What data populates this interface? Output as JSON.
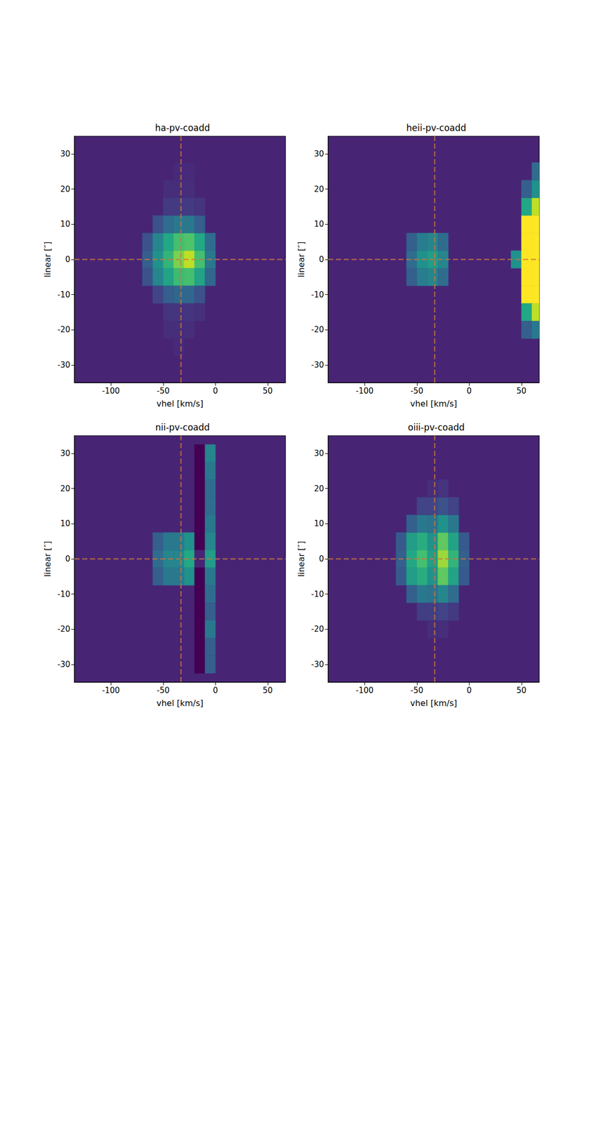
{
  "chart_data": [
    {
      "type": "heatmap",
      "title": "ha-pv-coadd",
      "x_label": "vhel [km/s]",
      "y_label": "linear [″]",
      "xlim": [
        -135,
        67
      ],
      "ylim": [
        -35,
        35
      ],
      "xticks": [
        -100,
        -50,
        0,
        50
      ],
      "yticks": [
        -30,
        -20,
        -10,
        0,
        10,
        20,
        30
      ],
      "cell_size": [
        10,
        5
      ],
      "value_range": [
        0,
        1
      ],
      "background_value": 0.1,
      "reference_lines": {
        "x": -33,
        "y": 0
      },
      "cells": [
        [
          -65,
          0,
          0.3
        ],
        [
          -55,
          0,
          0.5
        ],
        [
          -45,
          0,
          0.65
        ],
        [
          -35,
          0,
          0.8
        ],
        [
          -25,
          0,
          0.9
        ],
        [
          -15,
          0,
          0.7
        ],
        [
          -5,
          0,
          0.4
        ],
        [
          -65,
          5,
          0.25
        ],
        [
          -55,
          5,
          0.45
        ],
        [
          -45,
          5,
          0.6
        ],
        [
          -35,
          5,
          0.7
        ],
        [
          -25,
          5,
          0.72
        ],
        [
          -15,
          5,
          0.6
        ],
        [
          -5,
          5,
          0.35
        ],
        [
          -65,
          -5,
          0.25
        ],
        [
          -55,
          -5,
          0.45
        ],
        [
          -45,
          -5,
          0.58
        ],
        [
          -35,
          -5,
          0.68
        ],
        [
          -25,
          -5,
          0.7
        ],
        [
          -15,
          -5,
          0.58
        ],
        [
          -5,
          -5,
          0.33
        ],
        [
          -55,
          10,
          0.25
        ],
        [
          -45,
          10,
          0.35
        ],
        [
          -35,
          10,
          0.4
        ],
        [
          -25,
          10,
          0.4
        ],
        [
          -15,
          10,
          0.3
        ],
        [
          -55,
          -10,
          0.2
        ],
        [
          -45,
          -10,
          0.3
        ],
        [
          -35,
          -10,
          0.33
        ],
        [
          -25,
          -10,
          0.33
        ],
        [
          -15,
          -10,
          0.25
        ],
        [
          -45,
          15,
          0.17
        ],
        [
          -35,
          15,
          0.17
        ],
        [
          -25,
          15,
          0.17
        ],
        [
          -15,
          15,
          0.15
        ],
        [
          -45,
          -15,
          0.15
        ],
        [
          -35,
          -15,
          0.15
        ],
        [
          -25,
          -15,
          0.15
        ],
        [
          -15,
          -15,
          0.14
        ],
        [
          -45,
          20,
          0.13
        ],
        [
          -35,
          20,
          0.13
        ],
        [
          -25,
          20,
          0.13
        ],
        [
          -35,
          25,
          0.12
        ],
        [
          -25,
          25,
          0.12
        ],
        [
          -45,
          -20,
          0.13
        ],
        [
          -35,
          -20,
          0.13
        ],
        [
          -25,
          -20,
          0.13
        ],
        [
          -35,
          -25,
          0.12
        ]
      ]
    },
    {
      "type": "heatmap",
      "title": "heii-pv-coadd",
      "x_label": "vhel [km/s]",
      "y_label": "linear [″]",
      "xlim": [
        -135,
        67
      ],
      "ylim": [
        -35,
        35
      ],
      "xticks": [
        -100,
        -50,
        0,
        50
      ],
      "yticks": [
        -30,
        -20,
        -10,
        0,
        10,
        20,
        30
      ],
      "cell_size": [
        10,
        5
      ],
      "value_range": [
        0,
        1
      ],
      "background_value": 0.1,
      "reference_lines": {
        "x": -33,
        "y": 0
      },
      "cells": [
        [
          -55,
          0,
          0.35
        ],
        [
          -45,
          0,
          0.5
        ],
        [
          -35,
          0,
          0.55
        ],
        [
          -25,
          0,
          0.45
        ],
        [
          -55,
          5,
          0.3
        ],
        [
          -45,
          5,
          0.42
        ],
        [
          -35,
          5,
          0.45
        ],
        [
          -25,
          5,
          0.35
        ],
        [
          -55,
          -5,
          0.3
        ],
        [
          -45,
          -5,
          0.42
        ],
        [
          -35,
          -5,
          0.45
        ],
        [
          -25,
          -5,
          0.35
        ],
        [
          45,
          0,
          0.5
        ],
        [
          55,
          10,
          1
        ],
        [
          65,
          10,
          1
        ],
        [
          55,
          5,
          1
        ],
        [
          65,
          5,
          1
        ],
        [
          55,
          0,
          1
        ],
        [
          65,
          0,
          1
        ],
        [
          55,
          -5,
          1
        ],
        [
          65,
          -5,
          1
        ],
        [
          55,
          -10,
          1
        ],
        [
          65,
          -10,
          1
        ],
        [
          55,
          15,
          0.6
        ],
        [
          65,
          15,
          0.9
        ],
        [
          55,
          -15,
          0.6
        ],
        [
          65,
          -15,
          0.9
        ],
        [
          55,
          20,
          0.3
        ],
        [
          65,
          20,
          0.5
        ],
        [
          65,
          25,
          0.35
        ],
        [
          55,
          -20,
          0.3
        ],
        [
          65,
          -20,
          0.4
        ]
      ]
    },
    {
      "type": "heatmap",
      "title": "nii-pv-coadd",
      "x_label": "vhel [km/s]",
      "y_label": "linear [″]",
      "xlim": [
        -135,
        67
      ],
      "ylim": [
        -35,
        35
      ],
      "xticks": [
        -100,
        -50,
        0,
        50
      ],
      "yticks": [
        -30,
        -20,
        -10,
        0,
        10,
        20,
        30
      ],
      "cell_size": [
        10,
        5
      ],
      "value_range": [
        0,
        1
      ],
      "background_value": 0.1,
      "reference_lines": {
        "x": -33,
        "y": 0
      },
      "cells": [
        [
          -55,
          0,
          0.35
        ],
        [
          -45,
          0,
          0.45
        ],
        [
          -35,
          0,
          0.45
        ],
        [
          -25,
          0,
          0.6
        ],
        [
          -55,
          5,
          0.3
        ],
        [
          -45,
          5,
          0.4
        ],
        [
          -35,
          5,
          0.4
        ],
        [
          -25,
          5,
          0.5
        ],
        [
          -55,
          -5,
          0.3
        ],
        [
          -45,
          -5,
          0.4
        ],
        [
          -35,
          -5,
          0.4
        ],
        [
          -25,
          -5,
          0.5
        ],
        [
          -15,
          30,
          0
        ],
        [
          -15,
          25,
          0
        ],
        [
          -15,
          20,
          0
        ],
        [
          -15,
          15,
          0
        ],
        [
          -15,
          10,
          0
        ],
        [
          -15,
          5,
          0
        ],
        [
          -15,
          0,
          0.1
        ],
        [
          -15,
          -5,
          0
        ],
        [
          -15,
          -10,
          0
        ],
        [
          -15,
          -15,
          0
        ],
        [
          -15,
          -20,
          0
        ],
        [
          -15,
          -25,
          0
        ],
        [
          -15,
          -30,
          0
        ],
        [
          -5,
          30,
          0.45
        ],
        [
          -5,
          25,
          0.4
        ],
        [
          -5,
          20,
          0.35
        ],
        [
          -5,
          15,
          0.35
        ],
        [
          -5,
          10,
          0.4
        ],
        [
          -5,
          5,
          0.45
        ],
        [
          -5,
          0,
          0.55
        ],
        [
          -5,
          -5,
          0.4
        ],
        [
          -5,
          -10,
          0.35
        ],
        [
          -5,
          -15,
          0.3
        ],
        [
          -5,
          -20,
          0.4
        ],
        [
          -5,
          -25,
          0.3
        ],
        [
          -5,
          -30,
          0.3
        ]
      ]
    },
    {
      "type": "heatmap",
      "title": "oiii-pv-coadd",
      "x_label": "vhel [km/s]",
      "y_label": "linear [″]",
      "xlim": [
        -135,
        67
      ],
      "ylim": [
        -35,
        35
      ],
      "xticks": [
        -100,
        -50,
        0,
        50
      ],
      "yticks": [
        -30,
        -20,
        -10,
        0,
        10,
        20,
        30
      ],
      "cell_size": [
        10,
        5
      ],
      "value_range": [
        0,
        1
      ],
      "background_value": 0.1,
      "reference_lines": {
        "x": -33,
        "y": 0
      },
      "cells": [
        [
          -65,
          0,
          0.3
        ],
        [
          -55,
          0,
          0.6
        ],
        [
          -45,
          0,
          0.7
        ],
        [
          -35,
          0,
          0.55
        ],
        [
          -25,
          0,
          0.85
        ],
        [
          -15,
          0,
          0.65
        ],
        [
          -5,
          0,
          0.3
        ],
        [
          -65,
          5,
          0.28
        ],
        [
          -55,
          5,
          0.55
        ],
        [
          -45,
          5,
          0.62
        ],
        [
          -35,
          5,
          0.5
        ],
        [
          -25,
          5,
          0.75
        ],
        [
          -15,
          5,
          0.58
        ],
        [
          -5,
          5,
          0.28
        ],
        [
          -65,
          -5,
          0.28
        ],
        [
          -55,
          -5,
          0.55
        ],
        [
          -45,
          -5,
          0.62
        ],
        [
          -35,
          -5,
          0.5
        ],
        [
          -25,
          -5,
          0.75
        ],
        [
          -15,
          -5,
          0.58
        ],
        [
          -5,
          -5,
          0.28
        ],
        [
          -55,
          10,
          0.3
        ],
        [
          -45,
          10,
          0.4
        ],
        [
          -35,
          10,
          0.38
        ],
        [
          -25,
          10,
          0.5
        ],
        [
          -15,
          10,
          0.4
        ],
        [
          -55,
          -10,
          0.3
        ],
        [
          -45,
          -10,
          0.4
        ],
        [
          -35,
          -10,
          0.38
        ],
        [
          -25,
          -10,
          0.45
        ],
        [
          -15,
          -10,
          0.35
        ],
        [
          -45,
          15,
          0.2
        ],
        [
          -35,
          15,
          0.2
        ],
        [
          -25,
          15,
          0.25
        ],
        [
          -15,
          15,
          0.2
        ],
        [
          -45,
          -15,
          0.18
        ],
        [
          -35,
          -15,
          0.18
        ],
        [
          -25,
          -15,
          0.2
        ],
        [
          -15,
          -15,
          0.17
        ],
        [
          -35,
          20,
          0.13
        ],
        [
          -25,
          20,
          0.15
        ],
        [
          -35,
          -20,
          0.13
        ],
        [
          -25,
          -20,
          0.13
        ]
      ]
    }
  ]
}
